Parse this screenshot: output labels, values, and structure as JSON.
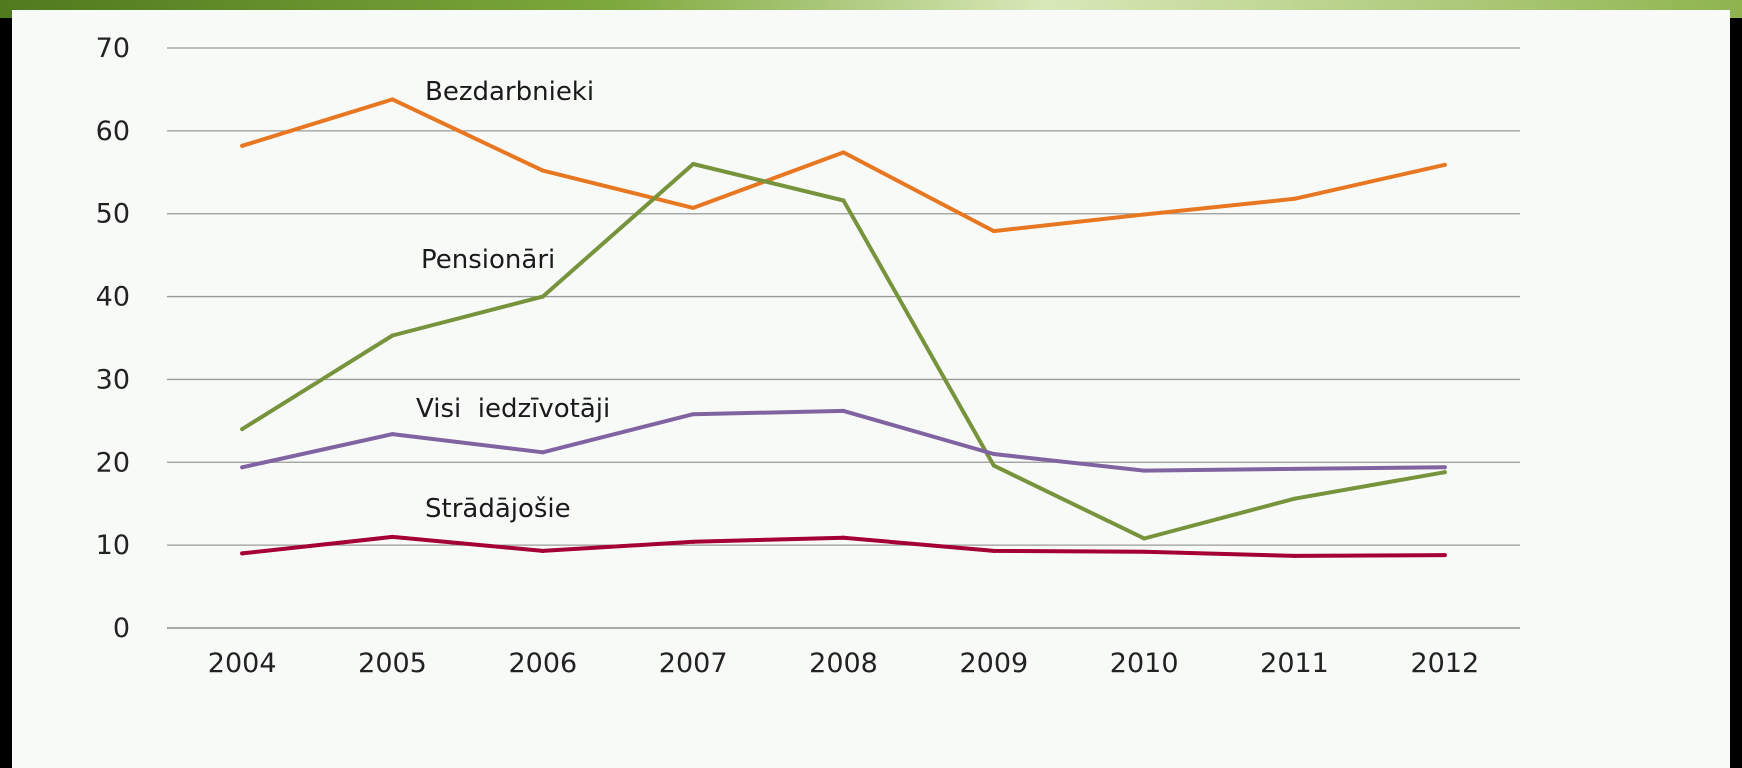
{
  "chart_data": {
    "type": "line",
    "title": "",
    "xlabel": "",
    "ylabel": "",
    "categories": [
      "2004",
      "2005",
      "2006",
      "2007",
      "2008",
      "2009",
      "2010",
      "2011",
      "2012"
    ],
    "ylim": [
      0,
      70
    ],
    "yticks": [
      "0",
      "10",
      "20",
      "30",
      "40",
      "50",
      "60",
      "70"
    ],
    "grid": "horizontal",
    "legend": "none (series labelled directly on chart)",
    "series": [
      {
        "name": "Bezdarbnieki",
        "color": "#e87722",
        "values": [
          58.2,
          63.8,
          55.2,
          50.7,
          57.4,
          47.9,
          49.9,
          51.8,
          55.9
        ]
      },
      {
        "name": "Pensionāri",
        "color": "#77933c",
        "values": [
          24.0,
          35.3,
          40.0,
          56.0,
          51.6,
          19.6,
          10.8,
          15.6,
          18.8
        ]
      },
      {
        "name": "Visi  iedzīvotāji",
        "color": "#8064a2",
        "values": [
          19.4,
          23.4,
          21.2,
          25.8,
          26.2,
          21.0,
          19.0,
          19.2,
          19.4
        ]
      },
      {
        "name": "Strādājošie",
        "color": "#a50034",
        "values": [
          9.0,
          11.0,
          9.3,
          10.4,
          10.9,
          9.3,
          9.2,
          8.7,
          8.8
        ]
      }
    ]
  }
}
